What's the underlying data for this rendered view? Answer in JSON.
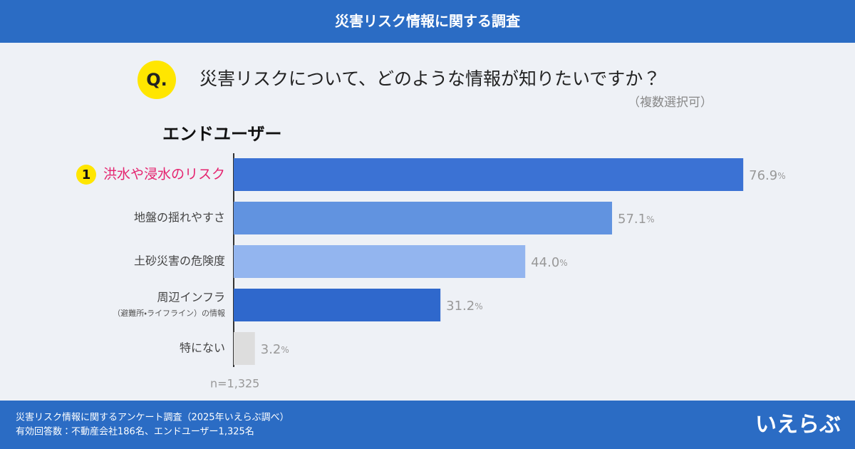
{
  "header": {
    "title": "災害リスク情報に関する調査"
  },
  "question": {
    "marker": "Q.",
    "text": "災害リスクについて、どのような情報が知りたいですか？",
    "note": "（複数選択可）"
  },
  "chart_data": {
    "type": "bar",
    "orientation": "horizontal",
    "subtitle": "エンドユーザー",
    "categories": [
      "洪水や浸水のリスク",
      "地盤の揺れやすさ",
      "土砂災害の危険度",
      "周辺インフラ",
      "特にない"
    ],
    "category_sublabels": [
      null,
      null,
      null,
      "（避難所・ライフライン）の情報",
      null
    ],
    "ranks": [
      "1",
      null,
      null,
      null,
      null
    ],
    "highlight_color": "#e5246f",
    "values": [
      76.9,
      57.1,
      44.0,
      31.2,
      3.2
    ],
    "value_labels": [
      "76.9%",
      "57.1%",
      "44.0%",
      "31.2%",
      "3.2%"
    ],
    "colors": [
      "#3b72d4",
      "#6193e0",
      "#93b5ef",
      "#2f68cc",
      "#dddddd"
    ],
    "xlim": [
      0,
      100
    ],
    "sample_size": "n=1,325"
  },
  "footer": {
    "lines": [
      "災害リスク情報に関するアンケート調査（2025年いえらぶ調べ）",
      "有効回答数：不動産会社186名、エンドユーザー1,325名"
    ],
    "logo": "いえらぶ"
  }
}
